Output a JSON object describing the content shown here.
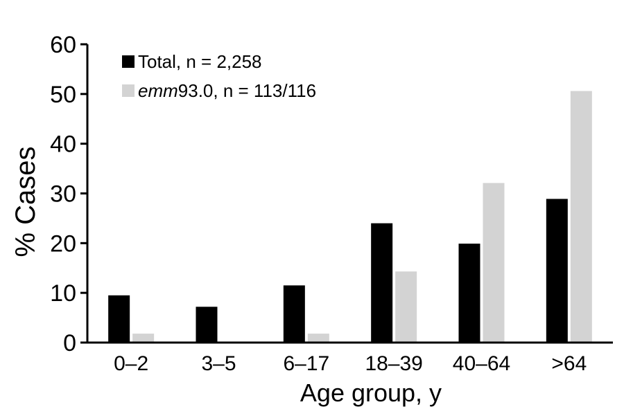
{
  "chart_data": {
    "type": "bar",
    "title": "",
    "xlabel": "Age group, y",
    "ylabel": "% Cases",
    "ylim": [
      0,
      60
    ],
    "yticks": [
      0,
      10,
      20,
      30,
      40,
      50,
      60
    ],
    "categories": [
      "0–2",
      "3–5",
      "6–17",
      "18–39",
      "40–64",
      ">64"
    ],
    "series": [
      {
        "name": "Total, n = 2,258",
        "legend_prefix": "",
        "legend_suffix": "Total, n = 2,258",
        "color": "#000000",
        "values": [
          9.5,
          7.2,
          11.5,
          24,
          19.9,
          28.9
        ]
      },
      {
        "name": "emm93.0, n = 113/116",
        "legend_prefix": "emm",
        "legend_suffix": "93.0, n = 113/116",
        "color": "#d3d3d3",
        "values": [
          1.8,
          0,
          1.8,
          14.3,
          32.1,
          50.6
        ]
      }
    ],
    "grid": false,
    "legend_position": "top-left"
  }
}
